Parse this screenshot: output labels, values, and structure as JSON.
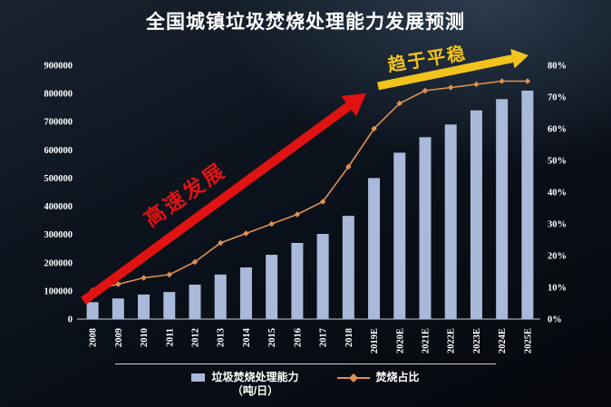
{
  "title": "全国城镇垃圾焚烧处理能力发展预测",
  "annotations": {
    "rapid": "高速发展",
    "stable": "趋于平稳"
  },
  "legend": {
    "bars": "垃圾焚烧处理能力",
    "bars_unit": "（吨/日）",
    "line": "焚烧占比"
  },
  "colors": {
    "background": "#0a111b",
    "bar": "#a9b9da",
    "line": "#df9150",
    "arrow_red": "#e01212",
    "arrow_yellow": "#f2c31c",
    "text": "#ffffff"
  },
  "chart_data": {
    "type": "bar+line",
    "title": "全国城镇垃圾焚烧处理能力发展预测",
    "categories": [
      "2008",
      "2009",
      "2010",
      "2011",
      "2012",
      "2013",
      "2014",
      "2015",
      "2016",
      "2017",
      "2018",
      "2019E",
      "2020E",
      "2021E",
      "2022E",
      "2023E",
      "2024E",
      "2025E"
    ],
    "series": [
      {
        "name": "垃圾焚烧处理能力",
        "unit": "吨/日",
        "type": "bar",
        "axis": "left",
        "values": [
          60000,
          73000,
          87000,
          96000,
          122000,
          158000,
          183000,
          228000,
          270000,
          302000,
          366000,
          500000,
          590000,
          645000,
          690000,
          740000,
          780000,
          810000
        ]
      },
      {
        "name": "焚烧占比",
        "unit": "%",
        "type": "line",
        "axis": "right",
        "values": [
          9,
          11,
          13,
          14,
          18,
          24,
          27,
          30,
          33,
          37,
          48,
          60,
          68,
          72,
          73,
          74,
          75,
          75
        ]
      }
    ],
    "left_axis": {
      "min": 0,
      "max": 900000,
      "step": 100000,
      "tick_labels": [
        "0",
        "100000",
        "200000",
        "300000",
        "400000",
        "500000",
        "600000",
        "700000",
        "800000",
        "900000"
      ]
    },
    "right_axis": {
      "min": 0,
      "max": 80,
      "step": 10,
      "suffix": "%",
      "tick_labels": [
        "0%",
        "10%",
        "20%",
        "30%",
        "40%",
        "50%",
        "60%",
        "70%",
        "80%"
      ]
    },
    "grid": false,
    "legend_position": "bottom"
  }
}
